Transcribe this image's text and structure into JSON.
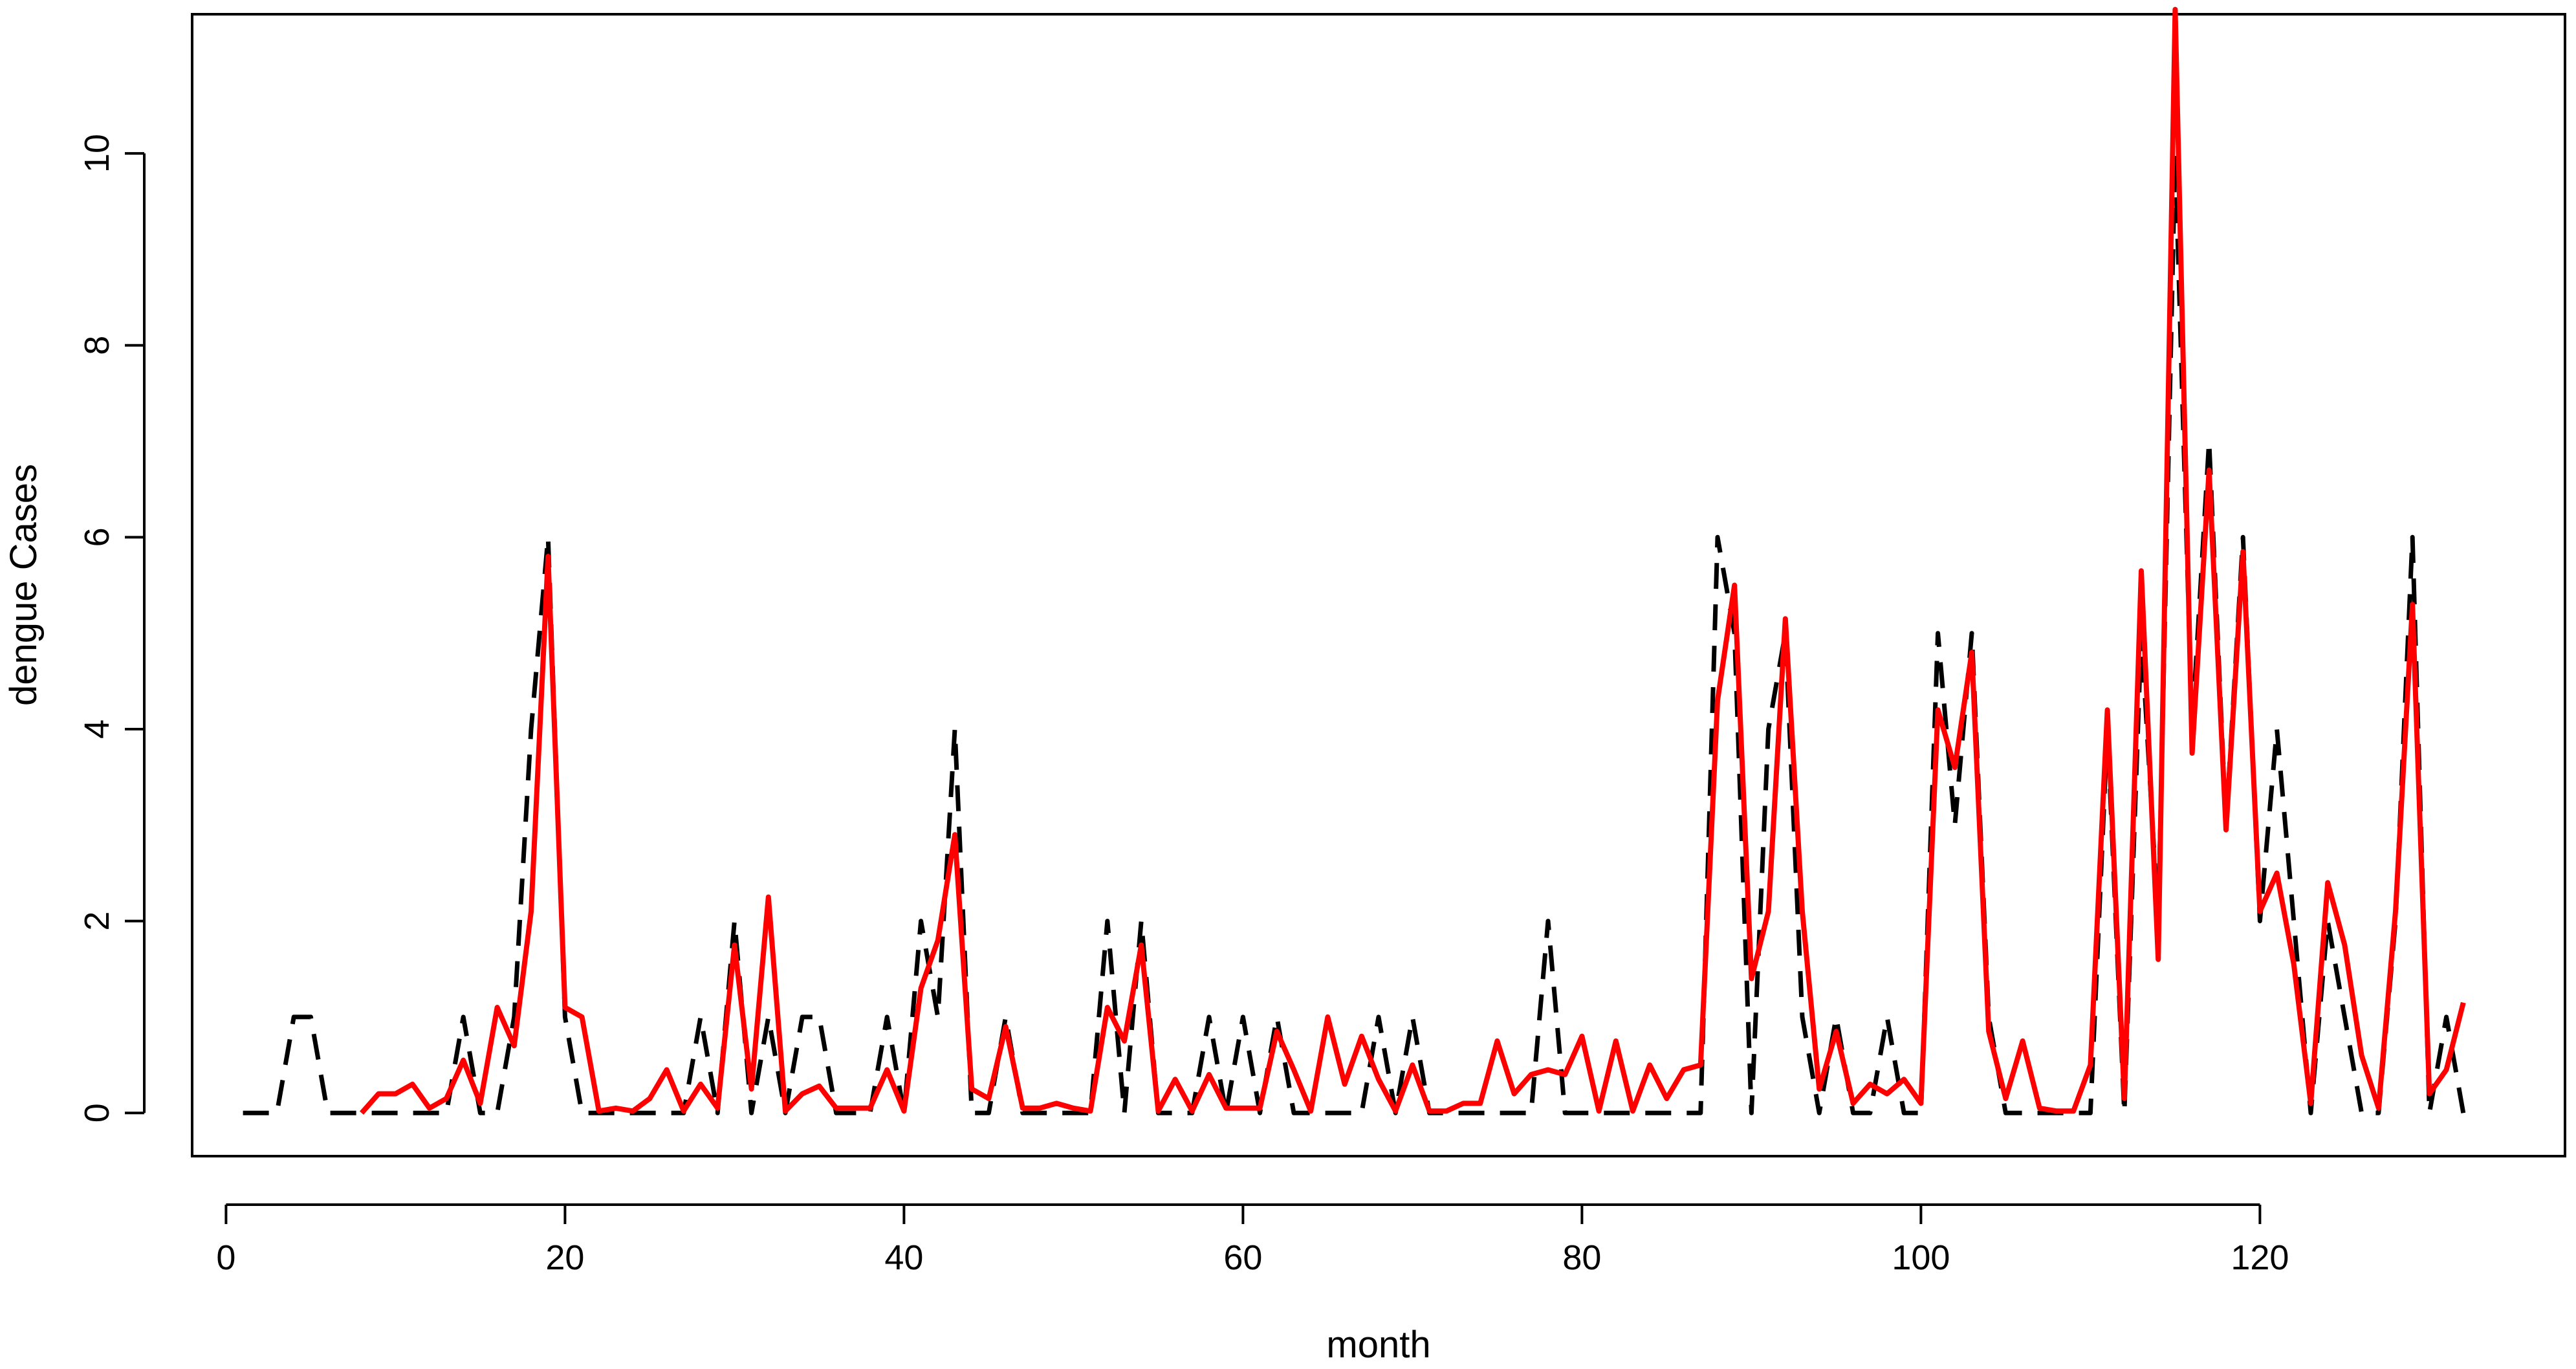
{
  "chart_data": {
    "type": "line",
    "title": "",
    "xlabel": "month",
    "ylabel": "dengue Cases",
    "xlim": [
      -2,
      138
    ],
    "ylim": [
      -0.45,
      11.45
    ],
    "x_ticks": [
      0,
      20,
      40,
      60,
      80,
      100,
      120
    ],
    "y_ticks": [
      0,
      2,
      4,
      6,
      8,
      10
    ],
    "grid": false,
    "legend": "none",
    "series": [
      {
        "style": "dashed",
        "color": "#000000",
        "x": [
          1,
          2,
          3,
          4,
          5,
          6,
          7,
          8,
          9,
          10,
          11,
          12,
          13,
          14,
          15,
          16,
          17,
          18,
          19,
          20,
          21,
          22,
          23,
          24,
          25,
          26,
          27,
          28,
          29,
          30,
          31,
          32,
          33,
          34,
          35,
          36,
          37,
          38,
          39,
          40,
          41,
          42,
          43,
          44,
          45,
          46,
          47,
          48,
          49,
          50,
          51,
          52,
          53,
          54,
          55,
          56,
          57,
          58,
          59,
          60,
          61,
          62,
          63,
          64,
          65,
          66,
          67,
          68,
          69,
          70,
          71,
          72,
          73,
          74,
          75,
          76,
          77,
          78,
          79,
          80,
          81,
          82,
          83,
          84,
          85,
          86,
          87,
          88,
          89,
          90,
          91,
          92,
          93,
          94,
          95,
          96,
          97,
          98,
          99,
          100,
          101,
          102,
          103,
          104,
          105,
          106,
          107,
          108,
          109,
          110,
          111,
          112,
          113,
          114,
          115,
          116,
          117,
          118,
          119,
          120,
          121,
          122,
          123,
          124,
          125,
          126,
          127,
          128,
          129,
          130,
          131,
          132
        ],
        "values": [
          0,
          0,
          0,
          1,
          1,
          0,
          0,
          0,
          0,
          0,
          0,
          0,
          0,
          1,
          0,
          0,
          1,
          4,
          6,
          1,
          0,
          0,
          0,
          0,
          0,
          0,
          0,
          1,
          0,
          2,
          0,
          1,
          0,
          1,
          1,
          0,
          0,
          0,
          1,
          0,
          2,
          1,
          4,
          0,
          0,
          1,
          0,
          0,
          0,
          0,
          0,
          2,
          0,
          2,
          0,
          0,
          0,
          1,
          0,
          1,
          0,
          1,
          0,
          0,
          0,
          0,
          0,
          1,
          0,
          1,
          0,
          0,
          0,
          0,
          0,
          0,
          0,
          2,
          0,
          0,
          0,
          0,
          0,
          0,
          0,
          0,
          0,
          6,
          5,
          0,
          4,
          5,
          1,
          0,
          1,
          0,
          0,
          1,
          0,
          0,
          5,
          3,
          5,
          1,
          0,
          0,
          0,
          0,
          0,
          0,
          4,
          0,
          5,
          2,
          10,
          4,
          7,
          3,
          6,
          2,
          4,
          2,
          0,
          2,
          1,
          0,
          0,
          2,
          6,
          0,
          1,
          0
        ]
      },
      {
        "style": "solid",
        "color": "#ff0000",
        "x": [
          8,
          9,
          10,
          11,
          12,
          13,
          14,
          15,
          16,
          17,
          18,
          19,
          20,
          21,
          22,
          23,
          24,
          25,
          26,
          27,
          28,
          29,
          30,
          31,
          32,
          33,
          34,
          35,
          36,
          37,
          38,
          39,
          40,
          41,
          42,
          43,
          44,
          45,
          46,
          47,
          48,
          49,
          50,
          51,
          52,
          53,
          54,
          55,
          56,
          57,
          58,
          59,
          60,
          61,
          62,
          63,
          64,
          65,
          66,
          67,
          68,
          69,
          70,
          71,
          72,
          73,
          74,
          75,
          76,
          77,
          78,
          79,
          80,
          81,
          82,
          83,
          84,
          85,
          86,
          87,
          88,
          89,
          90,
          91,
          92,
          93,
          94,
          95,
          96,
          97,
          98,
          99,
          100,
          101,
          102,
          103,
          104,
          105,
          106,
          107,
          108,
          109,
          110,
          111,
          112,
          113,
          114,
          115,
          116,
          117,
          118,
          119,
          120,
          121,
          122,
          123,
          124,
          125,
          126,
          127,
          128,
          129,
          130,
          131,
          132
        ],
        "values": [
          0,
          0.2,
          0.2,
          0.3,
          0.05,
          0.15,
          0.55,
          0.1,
          1.1,
          0.7,
          2.1,
          5.8,
          1.1,
          1.0,
          0.02,
          0.05,
          0.02,
          0.15,
          0.45,
          0.02,
          0.3,
          0.05,
          1.75,
          0.25,
          2.25,
          0.02,
          0.2,
          0.28,
          0.05,
          0.05,
          0.05,
          0.45,
          0.02,
          1.3,
          1.8,
          2.9,
          0.25,
          0.15,
          0.9,
          0.05,
          0.05,
          0.1,
          0.05,
          0.02,
          1.1,
          0.75,
          1.75,
          0.02,
          0.35,
          0.02,
          0.4,
          0.05,
          0.05,
          0.05,
          0.85,
          0.45,
          0.02,
          1.0,
          0.3,
          0.8,
          0.35,
          0.02,
          0.5,
          0.02,
          0.02,
          0.1,
          0.1,
          0.75,
          0.2,
          0.4,
          0.45,
          0.4,
          0.8,
          0.02,
          0.75,
          0.02,
          0.5,
          0.15,
          0.45,
          0.5,
          4.3,
          5.5,
          1.4,
          2.1,
          5.15,
          2.1,
          0.25,
          0.85,
          0.1,
          0.3,
          0.2,
          0.35,
          0.1,
          4.2,
          3.6,
          4.8,
          0.85,
          0.15,
          0.75,
          0.05,
          0.02,
          0.02,
          0.5,
          4.2,
          0.15,
          5.65,
          1.6,
          11.5,
          3.75,
          6.7,
          2.95,
          5.85,
          2.1,
          2.5,
          1.55,
          0.1,
          2.4,
          1.75,
          0.6,
          0.05,
          2.1,
          5.3,
          0.2,
          0.45,
          1.15
        ]
      }
    ]
  }
}
